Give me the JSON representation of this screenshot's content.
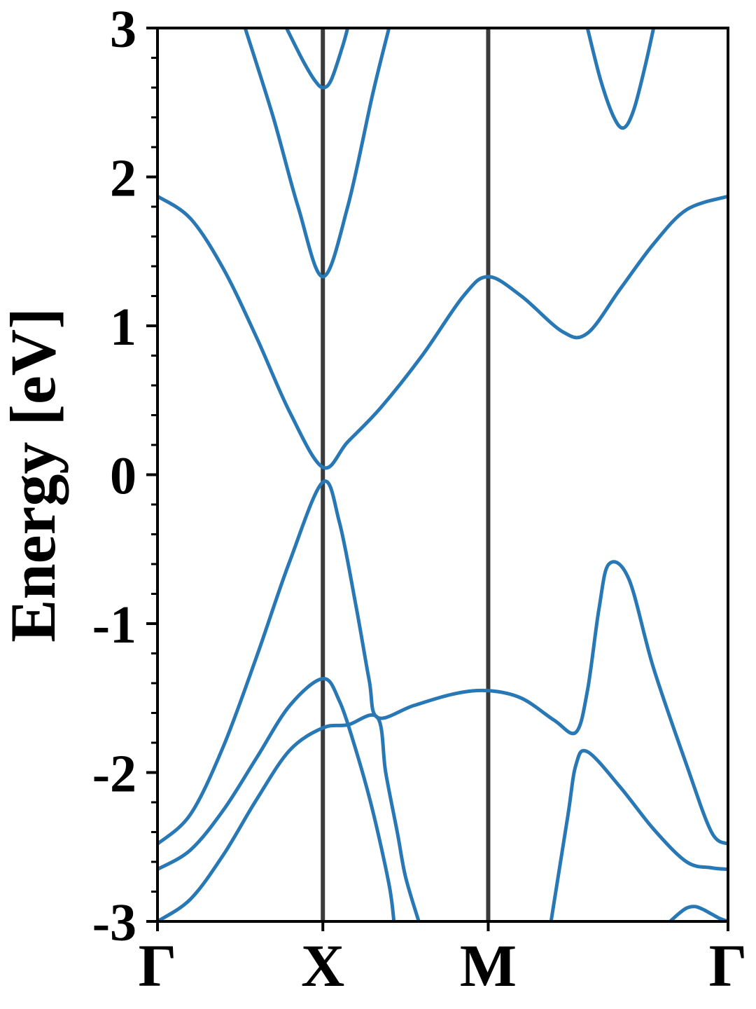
{
  "chart_data": {
    "type": "line",
    "ylabel": "Energy [eV]",
    "xlabel": "",
    "ylim": [
      -3,
      3
    ],
    "y_ticks": [
      "3",
      "2",
      "1",
      "0",
      "-1",
      "-2",
      "-3"
    ],
    "y_tick_values": [
      3,
      2,
      1,
      0,
      -1,
      -2,
      -3
    ],
    "y_minor_step": 0.2,
    "k_path_labels": [
      "Γ",
      "X",
      "M",
      "Γ"
    ],
    "k_path_positions": [
      0,
      1,
      2,
      3.45
    ],
    "grid": false,
    "line_color": "#2878b5",
    "vline_color": "#3a3a3a",
    "bands": [
      {
        "x": [
          0,
          0.2,
          0.4,
          0.6,
          0.8,
          1.0,
          1.15,
          1.35,
          1.6,
          1.85,
          2.0,
          2.2,
          2.45,
          2.6,
          2.8,
          3.0,
          3.2,
          3.45
        ],
        "y": [
          1.87,
          1.72,
          1.38,
          0.92,
          0.42,
          0.05,
          0.22,
          0.45,
          0.8,
          1.2,
          1.33,
          1.2,
          0.96,
          0.95,
          1.25,
          1.55,
          1.78,
          1.87
        ]
      },
      {
        "x": [
          0,
          0.2,
          0.4,
          0.6,
          0.8,
          1.0,
          1.1,
          1.2,
          1.28,
          1.33,
          1.55,
          1.8,
          2.0,
          2.2,
          2.4,
          2.53,
          2.6,
          2.67,
          2.73,
          2.85,
          3.0,
          3.2,
          3.35,
          3.45
        ],
        "y": [
          -2.48,
          -2.28,
          -1.82,
          -1.22,
          -0.58,
          -0.05,
          -0.32,
          -0.88,
          -1.38,
          -1.63,
          -1.55,
          -1.47,
          -1.45,
          -1.5,
          -1.65,
          -1.73,
          -1.45,
          -0.9,
          -0.6,
          -0.7,
          -1.3,
          -1.95,
          -2.4,
          -2.48
        ]
      },
      {
        "x": [
          0,
          0.2,
          0.4,
          0.6,
          0.8,
          1.0,
          1.1,
          1.2,
          1.3,
          1.4,
          1.43
        ],
        "y": [
          -2.65,
          -2.52,
          -2.25,
          -1.9,
          -1.55,
          -1.37,
          -1.52,
          -1.85,
          -2.25,
          -2.75,
          -3.0
        ]
      },
      {
        "x": [
          0,
          0.2,
          0.4,
          0.6,
          0.8,
          1.0,
          1.15,
          1.33,
          1.38,
          1.45,
          1.5,
          1.58
        ],
        "y": [
          -3.0,
          -2.85,
          -2.55,
          -2.18,
          -1.85,
          -1.7,
          -1.68,
          -1.63,
          -2.0,
          -2.4,
          -2.7,
          -3.0
        ]
      },
      {
        "x": [
          2.38,
          2.48,
          2.53,
          2.6,
          2.8,
          3.0,
          3.2,
          3.35,
          3.45
        ],
        "y": [
          -3.0,
          -2.3,
          -1.95,
          -1.86,
          -2.1,
          -2.38,
          -2.6,
          -2.64,
          -2.65
        ]
      },
      {
        "x": [
          3.1,
          3.15,
          3.2,
          3.25,
          3.3,
          3.35,
          3.4,
          3.45
        ],
        "y": [
          -3.0,
          -2.95,
          -2.91,
          -2.9,
          -2.92,
          -2.95,
          -2.98,
          -3.0
        ]
      },
      {
        "x": [
          0.53,
          0.7,
          0.85,
          1.0,
          1.15,
          1.3,
          1.4
        ],
        "y": [
          3.0,
          2.4,
          1.8,
          1.33,
          1.8,
          2.55,
          3.0
        ]
      },
      {
        "x": [
          0.78,
          0.88,
          0.95,
          1.0,
          1.05,
          1.12,
          1.15
        ],
        "y": [
          3.0,
          2.78,
          2.65,
          2.6,
          2.65,
          2.88,
          3.0
        ]
      },
      {
        "x": [
          2.6,
          2.68,
          2.76,
          2.82,
          2.88,
          2.95,
          3.0
        ],
        "y": [
          3.0,
          2.65,
          2.4,
          2.33,
          2.45,
          2.75,
          3.0
        ]
      }
    ]
  }
}
